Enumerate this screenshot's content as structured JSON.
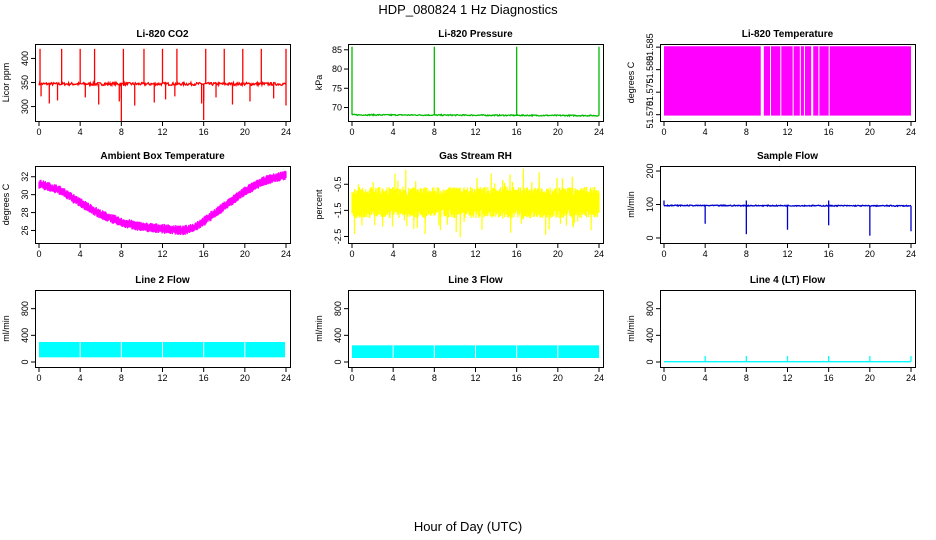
{
  "figure": {
    "title": "HDP_080824  1 Hz Diagnostics",
    "xlabel": "Hour of Day (UTC)"
  },
  "chart_data": [
    {
      "id": "co2",
      "type": "line",
      "title": "Li-820 CO2",
      "ylabel": "Licor ppm",
      "color": "#ff0000",
      "xlim": [
        0,
        24
      ],
      "ylim": [
        270,
        430
      ],
      "xticks": [
        0,
        4,
        8,
        12,
        16,
        20,
        24
      ],
      "yticks": [
        300,
        350,
        400
      ],
      "ytick_labels": [
        "300",
        "350",
        "400"
      ],
      "tick_rotate": true,
      "series": [
        {
          "name": "Li-820 CO2",
          "kind": "noisy_spikes",
          "baseline": [
            [
              0,
              347
            ],
            [
              24,
              347
            ]
          ],
          "noise": 3,
          "up_spikes": [
            0.1,
            2.2,
            4,
            5.4,
            8.2,
            10.2,
            12,
            13.4,
            16.2,
            18,
            19.8,
            21.6,
            24
          ],
          "up_peak": 420,
          "down_spikes": [
            0.2,
            1,
            1.8,
            4.5,
            5.8,
            7.8,
            8,
            9.3,
            11.2,
            12.3,
            13.2,
            15.8,
            16,
            17.2,
            18.8,
            20.5,
            22.8,
            24
          ],
          "down_peak": 300,
          "big_down": [
            [
              8,
              270
            ],
            [
              16,
              272
            ]
          ]
        }
      ]
    },
    {
      "id": "pressure",
      "type": "line",
      "title": "Li-820 Pressure",
      "ylabel": "kPa",
      "color": "#00bb00",
      "xlim": [
        0,
        24
      ],
      "ylim": [
        66.5,
        86.5
      ],
      "xticks": [
        0,
        4,
        8,
        12,
        16,
        20,
        24
      ],
      "yticks": [
        70,
        75,
        80,
        85
      ],
      "ytick_labels": [
        "70",
        "75",
        "80",
        "85"
      ],
      "tick_rotate": false,
      "series": [
        {
          "name": "Li-820 Pressure",
          "kind": "noisy_spikes",
          "baseline": [
            [
              0,
              68.1
            ],
            [
              24,
              67.9
            ]
          ],
          "noise": 0.15,
          "up_spikes": [
            0,
            8,
            16,
            24
          ],
          "up_peak": 85.8,
          "down_spikes": [],
          "down_peak": 68,
          "big_down": []
        }
      ]
    },
    {
      "id": "li_temp",
      "type": "area",
      "title": "Li-820 Temperature",
      "ylabel": "degrees C",
      "color": "#ff00ff",
      "xlim": [
        0,
        24
      ],
      "ylim": [
        51.5686,
        51.5857
      ],
      "xticks": [
        0,
        4,
        8,
        12,
        16,
        20,
        24
      ],
      "yticks": [
        51.57,
        51.575,
        51.58,
        51.585
      ],
      "ytick_labels": [
        "51.570",
        "51.575",
        "51.580",
        "51.585"
      ],
      "tick_rotate": true,
      "series": [
        {
          "name": "Li-820 Temperature",
          "kind": "band",
          "low": 51.5698,
          "high": 51.5852,
          "gaps": [
            [
              9.4,
              9.7
            ],
            [
              10.3,
              10.35
            ],
            [
              11.3,
              11.36
            ],
            [
              12.5,
              12.55
            ],
            [
              13.2,
              13.26
            ],
            [
              13.6,
              13.65
            ],
            [
              14.3,
              14.5
            ],
            [
              15.0,
              15.06
            ],
            [
              16.0,
              16.04
            ]
          ]
        }
      ]
    },
    {
      "id": "box_temp",
      "type": "line",
      "title": "Ambient Box Temperature",
      "ylabel": "degrees C",
      "color": "#ff00ff",
      "xlim": [
        0,
        24
      ],
      "ylim": [
        24.6,
        33.2
      ],
      "xticks": [
        0,
        4,
        8,
        12,
        16,
        20,
        24
      ],
      "yticks": [
        26,
        28,
        30,
        32
      ],
      "ytick_labels": [
        "26",
        "28",
        "30",
        "32"
      ],
      "tick_rotate": true,
      "series": [
        {
          "name": "Ambient Box Temperature",
          "kind": "noisy_curve",
          "curve": [
            [
              0,
              31.2
            ],
            [
              2,
              30.5
            ],
            [
              4,
              29.1
            ],
            [
              6,
              27.8
            ],
            [
              8,
              26.9
            ],
            [
              10,
              26.4
            ],
            [
              12,
              26.2
            ],
            [
              14,
              26.0
            ],
            [
              15,
              26.3
            ],
            [
              16,
              27.0
            ],
            [
              18,
              28.7
            ],
            [
              20,
              30.4
            ],
            [
              22,
              31.6
            ],
            [
              24,
              32.2
            ]
          ],
          "halfwidth": 0.55
        }
      ]
    },
    {
      "id": "rh",
      "type": "line",
      "title": "Gas Stream RH",
      "ylabel": "percent",
      "color": "#ffff00",
      "xlim": [
        0,
        24
      ],
      "ylim": [
        -2.75,
        0.2
      ],
      "xticks": [
        0,
        4,
        8,
        12,
        16,
        20,
        24
      ],
      "yticks": [
        -2.5,
        -1.5,
        -0.5
      ],
      "ytick_labels": [
        "-2.5",
        "-1.5",
        "-0.5"
      ],
      "tick_rotate": true,
      "series": [
        {
          "name": "Gas Stream RH",
          "kind": "noisy_curve",
          "curve": [
            [
              0,
              -1.2
            ],
            [
              12,
              -1.2
            ],
            [
              24,
              -1.2
            ]
          ],
          "halfwidth": 0.6,
          "spiky": 0.8
        }
      ]
    },
    {
      "id": "sample_flow",
      "type": "line",
      "title": "Sample Flow",
      "ylabel": "ml/min",
      "color": "#0000cc",
      "xlim": [
        0,
        24
      ],
      "ylim": [
        -15,
        215
      ],
      "xticks": [
        0,
        4,
        8,
        12,
        16,
        20,
        24
      ],
      "yticks": [
        0,
        100,
        200
      ],
      "ytick_labels": [
        "0",
        "100",
        "200"
      ],
      "tick_rotate": true,
      "series": [
        {
          "name": "Sample Flow",
          "kind": "noisy_spikes",
          "baseline": [
            [
              0,
              97
            ],
            [
              24,
              96
            ]
          ],
          "noise": 1.5,
          "up_spikes": [
            0,
            8,
            16
          ],
          "up_peak": 112,
          "down_spikes": [
            4,
            8,
            12,
            16,
            20,
            24
          ],
          "down_peak": -2,
          "big_down": []
        }
      ]
    },
    {
      "id": "line2",
      "type": "area",
      "title": "Line 2 Flow",
      "ylabel": "ml/min",
      "color": "#00ffff",
      "xlim": [
        0,
        24
      ],
      "ylim": [
        -75,
        1080
      ],
      "xticks": [
        0,
        4,
        8,
        12,
        16,
        20,
        24
      ],
      "yticks": [
        0,
        400,
        800
      ],
      "ytick_labels": [
        "0",
        "400",
        "800"
      ],
      "tick_rotate": true,
      "series": [
        {
          "name": "Line 2 Flow",
          "kind": "band",
          "low": 70,
          "high": 300,
          "gaps": [
            [
              3.95,
              4.02
            ],
            [
              7.95,
              8.02
            ],
            [
              11.95,
              12.02
            ],
            [
              15.95,
              16.02
            ],
            [
              19.95,
              20.02
            ],
            [
              23.9,
              23.97
            ]
          ]
        }
      ]
    },
    {
      "id": "line3",
      "type": "area",
      "title": "Line 3 Flow",
      "ylabel": "ml/min",
      "color": "#00ffff",
      "xlim": [
        0,
        24
      ],
      "ylim": [
        -75,
        1080
      ],
      "xticks": [
        0,
        4,
        8,
        12,
        16,
        20,
        24
      ],
      "yticks": [
        0,
        400,
        800
      ],
      "ytick_labels": [
        "0",
        "400",
        "800"
      ],
      "tick_rotate": true,
      "series": [
        {
          "name": "Line 3 Flow",
          "kind": "band",
          "low": 60,
          "high": 250,
          "gaps": [
            [
              3.95,
              4.02
            ],
            [
              7.95,
              8.02
            ],
            [
              11.95,
              12.02
            ],
            [
              15.95,
              16.02
            ],
            [
              19.95,
              20.02
            ]
          ]
        }
      ]
    },
    {
      "id": "line4",
      "type": "line",
      "title": "Line 4 (LT) Flow",
      "ylabel": "ml/min",
      "color": "#00ffff",
      "xlim": [
        0,
        24
      ],
      "ylim": [
        -75,
        1080
      ],
      "xticks": [
        0,
        4,
        8,
        12,
        16,
        20,
        24
      ],
      "yticks": [
        0,
        400,
        800
      ],
      "ytick_labels": [
        "0",
        "400",
        "800"
      ],
      "tick_rotate": true,
      "series": [
        {
          "name": "Line 4 (LT) Flow",
          "kind": "noisy_spikes",
          "baseline": [
            [
              0,
              5
            ],
            [
              24,
              5
            ]
          ],
          "noise": 0,
          "up_spikes": [
            4,
            8,
            12,
            16,
            20,
            24
          ],
          "up_peak": 90,
          "down_spikes": [],
          "down_peak": 0,
          "big_down": []
        }
      ]
    }
  ]
}
